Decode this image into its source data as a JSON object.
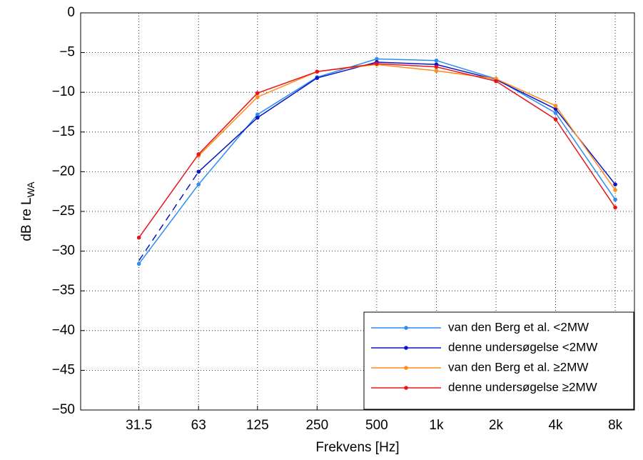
{
  "chart_data": {
    "type": "line",
    "xlabel": "Frekvens [Hz]",
    "ylabel": "dB re L",
    "ylabel_sub": "WA",
    "x": [
      31.5,
      63,
      125,
      250,
      500,
      1000,
      2000,
      4000,
      8000
    ],
    "xscale": "log",
    "xlim": [
      16,
      10000
    ],
    "xticks": [
      31.5,
      63,
      125,
      250,
      500,
      {
        "value": 1000,
        "label": "1k"
      },
      {
        "value": 2000,
        "label": "2k"
      },
      {
        "value": 4000,
        "label": "4k"
      },
      {
        "value": 8000,
        "label": "8k"
      }
    ],
    "ylim": [
      -50,
      0
    ],
    "yticks": [
      {
        "value": -50,
        "label": "−50"
      },
      {
        "value": -45,
        "label": "−45"
      },
      {
        "value": -40,
        "label": "−40"
      },
      {
        "value": -35,
        "label": "−35"
      },
      {
        "value": -30,
        "label": "−30"
      },
      {
        "value": -25,
        "label": "−25"
      },
      {
        "value": -20,
        "label": "−20"
      },
      {
        "value": -15,
        "label": "−15"
      },
      {
        "value": -10,
        "label": "−10"
      },
      {
        "value": -5,
        "label": "−5"
      },
      0
    ],
    "grid": true,
    "legend": "lower right",
    "series": [
      {
        "name": "van den Berg et al. <2MW",
        "color": "#2f8cf0",
        "values": [
          -31.6,
          -21.6,
          -12.8,
          -8.1,
          -5.8,
          -6.0,
          -8.3,
          -12.6,
          -23.5
        ]
      },
      {
        "name": "denne undersøgelse <2MW",
        "color": "#0a14c8",
        "values": [
          -31.2,
          -20.0,
          -13.2,
          -8.2,
          -6.2,
          -6.5,
          -8.4,
          -12.1,
          -21.6
        ],
        "dashed_segments": [
          0
        ]
      },
      {
        "name": "van den Berg et al. ≥2MW",
        "color": "#ff8c1a",
        "values": [
          null,
          -18.0,
          -10.6,
          -7.4,
          -6.5,
          -7.3,
          -8.3,
          -11.7,
          -22.3
        ]
      },
      {
        "name": "denne undersøgelse ≥2MW",
        "color": "#e8161a",
        "values": [
          -28.3,
          -17.8,
          -10.1,
          -7.4,
          -6.4,
          -6.8,
          -8.6,
          -13.4,
          -24.5
        ]
      }
    ]
  }
}
